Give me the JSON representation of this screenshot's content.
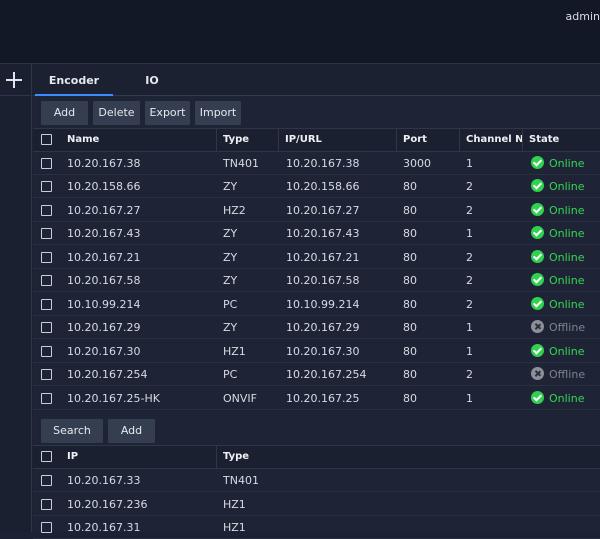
{
  "header": {
    "user": "admin"
  },
  "tabs": [
    {
      "label": "Encoder",
      "active": true
    },
    {
      "label": "IO",
      "active": false
    }
  ],
  "toolbar": {
    "add": "Add",
    "delete": "Delete",
    "export": "Export",
    "import": "Import"
  },
  "encoder_table": {
    "columns": [
      "Name",
      "Type",
      "IP/URL",
      "Port",
      "Channel N",
      "State"
    ],
    "rows": [
      {
        "name": "10.20.167.38",
        "type": "TN401",
        "ip": "10.20.167.38",
        "port": "3000",
        "channel": "1",
        "state": "Online"
      },
      {
        "name": "10.20.158.66",
        "type": "ZY",
        "ip": "10.20.158.66",
        "port": "80",
        "channel": "2",
        "state": "Online"
      },
      {
        "name": "10.20.167.27",
        "type": "HZ2",
        "ip": "10.20.167.27",
        "port": "80",
        "channel": "2",
        "state": "Online"
      },
      {
        "name": "10.20.167.43",
        "type": "ZY",
        "ip": "10.20.167.43",
        "port": "80",
        "channel": "1",
        "state": "Online"
      },
      {
        "name": "10.20.167.21",
        "type": "ZY",
        "ip": "10.20.167.21",
        "port": "80",
        "channel": "2",
        "state": "Online"
      },
      {
        "name": "10.20.167.58",
        "type": "ZY",
        "ip": "10.20.167.58",
        "port": "80",
        "channel": "2",
        "state": "Online"
      },
      {
        "name": "10.10.99.214",
        "type": "PC",
        "ip": "10.10.99.214",
        "port": "80",
        "channel": "2",
        "state": "Online"
      },
      {
        "name": "10.20.167.29",
        "type": "ZY",
        "ip": "10.20.167.29",
        "port": "80",
        "channel": "1",
        "state": "Offline"
      },
      {
        "name": "10.20.167.30",
        "type": "HZ1",
        "ip": "10.20.167.30",
        "port": "80",
        "channel": "1",
        "state": "Online"
      },
      {
        "name": "10.20.167.254",
        "type": "PC",
        "ip": "10.20.167.254",
        "port": "80",
        "channel": "2",
        "state": "Offline"
      },
      {
        "name": "10.20.167.25-HK",
        "type": "ONVIF",
        "ip": "10.20.167.25",
        "port": "80",
        "channel": "1",
        "state": "Online"
      }
    ]
  },
  "search_toolbar": {
    "search": "Search",
    "add": "Add"
  },
  "search_table": {
    "columns": [
      "IP",
      "Type"
    ],
    "rows": [
      {
        "ip": "10.20.167.33",
        "type": "TN401"
      },
      {
        "ip": "10.20.167.236",
        "type": "HZ1"
      },
      {
        "ip": "10.20.167.31",
        "type": "HZ1"
      }
    ]
  },
  "colors": {
    "accent": "#3c8bff",
    "online": "#35d653",
    "offline": "#7e838e",
    "background": "#1e2435"
  },
  "icons": {
    "sidebar_add": "plus-icon",
    "online": "check-circle-icon",
    "offline": "x-circle-icon"
  }
}
